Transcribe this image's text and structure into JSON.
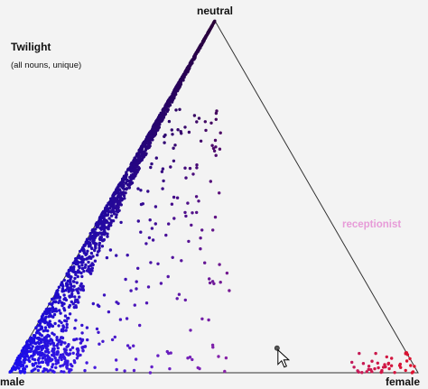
{
  "chart_data": {
    "type": "scatter",
    "projection": "ternary",
    "title": "Twilight",
    "subtitle": "(all nouns, unique)",
    "vertices": {
      "top": "neutral",
      "left": "male",
      "right": "female"
    },
    "annotations": [
      {
        "text": "receptionist",
        "color": "#e79bd8"
      }
    ],
    "colors": {
      "male": "#1a0ef0",
      "neutral": "#2a0038",
      "female": "#e0102a",
      "edge": "#333333",
      "background": "#f3f3f3",
      "annotation": "#e79bd8"
    },
    "grid": false,
    "legend": "none",
    "clusters": [
      {
        "name": "male-neutral band",
        "count": 1450,
        "point_along": [
          0.0,
          1.0
        ],
        "spread_toward_female": [
          0.0,
          0.1
        ]
      },
      {
        "name": "male corner",
        "count": 240,
        "point_along": [
          0.0,
          0.1
        ],
        "spread_toward_female": [
          0.0,
          0.15
        ]
      },
      {
        "name": "interior scatter",
        "count": 170,
        "point_along": [
          0.0,
          0.75
        ],
        "spread_toward_female": [
          0.1,
          0.55
        ]
      },
      {
        "name": "female corner",
        "count": 45,
        "point_along": [
          0.0,
          0.06
        ],
        "spread_toward_female": [
          0.82,
          0.99
        ]
      }
    ],
    "highlighted": [
      {
        "note": "point under cursor",
        "neutral": 0.07,
        "female": 0.62
      }
    ],
    "ui": {
      "cursor": "pointer-arrow"
    }
  }
}
